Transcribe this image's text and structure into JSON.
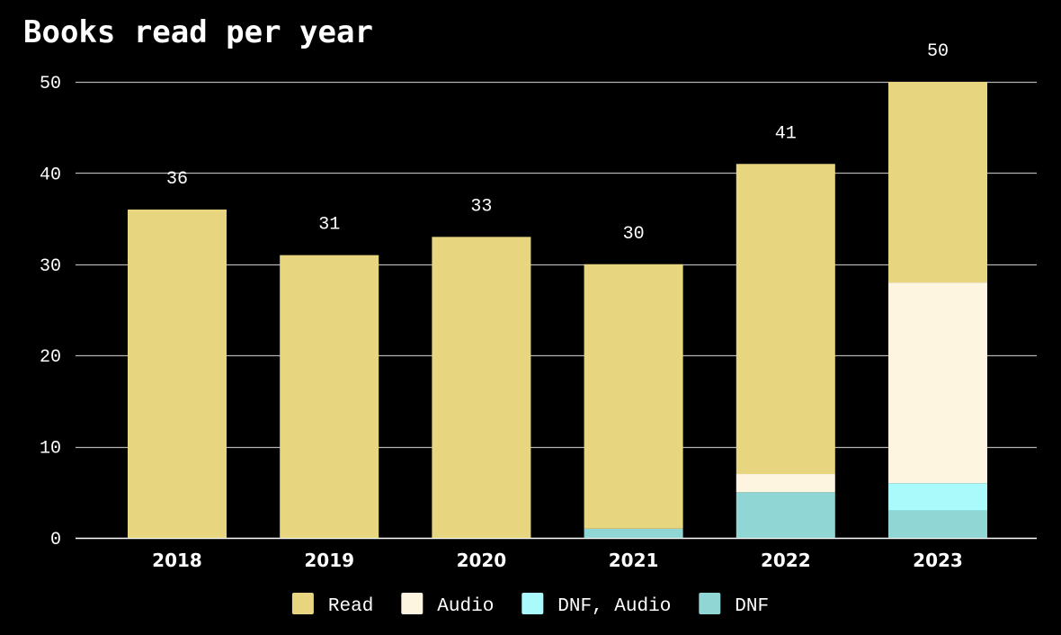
{
  "chart_data": {
    "type": "bar",
    "stacked": true,
    "title": "Books read per year",
    "xlabel": "",
    "ylabel": "",
    "categories": [
      "2018",
      "2019",
      "2020",
      "2021",
      "2022",
      "2023"
    ],
    "ylim": [
      0,
      50
    ],
    "yticks": [
      0,
      10,
      20,
      30,
      40,
      50
    ],
    "grid": true,
    "legend_position": "bottom",
    "series": [
      {
        "name": "DNF",
        "color": "#8fd6d5",
        "values": [
          0,
          0,
          0,
          1,
          5,
          3
        ]
      },
      {
        "name": "DNF, Audio",
        "color": "#aafafb",
        "values": [
          0,
          0,
          0,
          0,
          0,
          3
        ]
      },
      {
        "name": "Audio",
        "color": "#fdf5e0",
        "values": [
          0,
          0,
          0,
          0,
          2,
          22
        ]
      },
      {
        "name": "Read",
        "color": "#e8d580",
        "values": [
          36,
          31,
          33,
          29,
          34,
          22
        ]
      }
    ],
    "totals": [
      36,
      31,
      33,
      30,
      41,
      50
    ],
    "legend_order": [
      "Read",
      "Audio",
      "DNF, Audio",
      "DNF"
    ],
    "background_color": "#000000",
    "grid_color": "#ffffff"
  }
}
